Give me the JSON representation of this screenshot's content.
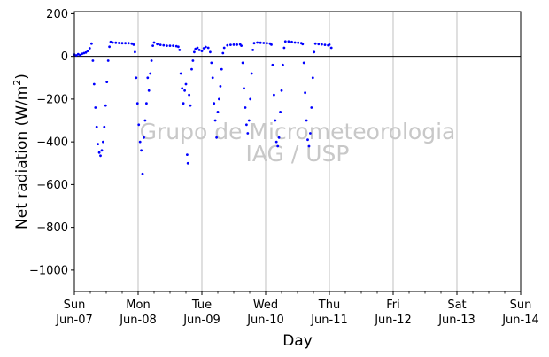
{
  "chart_data": {
    "type": "scatter",
    "xlabel": "Day",
    "ylabel": "Net radiation (W/m²)",
    "ylabel_main": "Net radiation (W/m",
    "ylabel_sup": "2",
    "ylabel_close": ")",
    "xlim": [
      0,
      7
    ],
    "ylim": [
      -1100,
      210
    ],
    "yticks": [
      200,
      0,
      -200,
      -400,
      -600,
      -800,
      -1000
    ],
    "ytick_labels": [
      "200",
      "0",
      "−200",
      "−400",
      "−600",
      "−800",
      "−1000"
    ],
    "xticks": [
      {
        "x": 0,
        "day": "Sun",
        "date": "Jun-07"
      },
      {
        "x": 1,
        "day": "Mon",
        "date": "Jun-08"
      },
      {
        "x": 2,
        "day": "Tue",
        "date": "Jun-09"
      },
      {
        "x": 3,
        "day": "Wed",
        "date": "Jun-10"
      },
      {
        "x": 4,
        "day": "Thu",
        "date": "Jun-11"
      },
      {
        "x": 5,
        "day": "Fri",
        "date": "Jun-12"
      },
      {
        "x": 6,
        "day": "Sat",
        "date": "Jun-13"
      },
      {
        "x": 7,
        "day": "Sun",
        "date": "Jun-14"
      }
    ],
    "grid": "vertical major lines",
    "zero_line": true,
    "point_color": "#0000ff",
    "watermark": [
      "Grupo de Micrometeorologia",
      "IAG / USP"
    ],
    "series": [
      {
        "points": [
          [
            0.0,
            8
          ],
          [
            0.03,
            5
          ],
          [
            0.06,
            10
          ],
          [
            0.09,
            6
          ],
          [
            0.12,
            12
          ],
          [
            0.15,
            15
          ],
          [
            0.18,
            18
          ],
          [
            0.21,
            25
          ],
          [
            0.24,
            38
          ],
          [
            0.27,
            60
          ],
          [
            0.29,
            -20
          ],
          [
            0.31,
            -130
          ],
          [
            0.33,
            -240
          ],
          [
            0.35,
            -330
          ],
          [
            0.37,
            -410
          ],
          [
            0.39,
            -450
          ],
          [
            0.41,
            -465
          ],
          [
            0.43,
            -440
          ],
          [
            0.45,
            -400
          ],
          [
            0.47,
            -330
          ],
          [
            0.49,
            -230
          ],
          [
            0.51,
            -120
          ],
          [
            0.53,
            -20
          ],
          [
            0.55,
            45
          ],
          [
            0.57,
            68
          ],
          [
            0.6,
            65
          ],
          [
            0.65,
            64
          ],
          [
            0.7,
            63
          ],
          [
            0.75,
            62
          ],
          [
            0.8,
            62
          ],
          [
            0.85,
            62
          ],
          [
            0.9,
            60
          ],
          [
            0.93,
            55
          ],
          [
            0.95,
            20
          ],
          [
            0.97,
            -100
          ],
          [
            0.99,
            -220
          ],
          [
            1.01,
            -320
          ],
          [
            1.03,
            -400
          ],
          [
            1.05,
            -440
          ],
          [
            1.07,
            -550
          ],
          [
            1.09,
            -380
          ],
          [
            1.11,
            -300
          ],
          [
            1.13,
            -220
          ],
          [
            1.15,
            -100
          ],
          [
            1.17,
            -160
          ],
          [
            1.19,
            -80
          ],
          [
            1.21,
            -20
          ],
          [
            1.23,
            50
          ],
          [
            1.25,
            65
          ],
          [
            1.3,
            58
          ],
          [
            1.35,
            54
          ],
          [
            1.4,
            52
          ],
          [
            1.45,
            50
          ],
          [
            1.5,
            50
          ],
          [
            1.55,
            50
          ],
          [
            1.6,
            48
          ],
          [
            1.63,
            45
          ],
          [
            1.65,
            30
          ],
          [
            1.67,
            -80
          ],
          [
            1.69,
            -150
          ],
          [
            1.71,
            -220
          ],
          [
            1.73,
            -160
          ],
          [
            1.75,
            -130
          ],
          [
            1.77,
            -460
          ],
          [
            1.78,
            -500
          ],
          [
            1.8,
            -180
          ],
          [
            1.82,
            -230
          ],
          [
            1.84,
            -60
          ],
          [
            1.86,
            -20
          ],
          [
            1.88,
            20
          ],
          [
            1.9,
            35
          ],
          [
            1.93,
            40
          ],
          [
            1.96,
            30
          ],
          [
            2.0,
            25
          ],
          [
            2.03,
            38
          ],
          [
            2.06,
            44
          ],
          [
            2.1,
            40
          ],
          [
            2.13,
            20
          ],
          [
            2.15,
            -30
          ],
          [
            2.17,
            -100
          ],
          [
            2.19,
            -220
          ],
          [
            2.21,
            -300
          ],
          [
            2.23,
            -380
          ],
          [
            2.25,
            -260
          ],
          [
            2.27,
            -200
          ],
          [
            2.29,
            -140
          ],
          [
            2.31,
            -60
          ],
          [
            2.33,
            15
          ],
          [
            2.35,
            40
          ],
          [
            2.4,
            52
          ],
          [
            2.45,
            54
          ],
          [
            2.5,
            55
          ],
          [
            2.55,
            55
          ],
          [
            2.6,
            56
          ],
          [
            2.62,
            50
          ],
          [
            2.64,
            -30
          ],
          [
            2.66,
            -150
          ],
          [
            2.68,
            -240
          ],
          [
            2.7,
            -320
          ],
          [
            2.72,
            -360
          ],
          [
            2.74,
            -300
          ],
          [
            2.76,
            -200
          ],
          [
            2.78,
            -80
          ],
          [
            2.8,
            30
          ],
          [
            2.82,
            62
          ],
          [
            2.87,
            65
          ],
          [
            2.92,
            64
          ],
          [
            2.97,
            63
          ],
          [
            3.02,
            62
          ],
          [
            3.07,
            60
          ],
          [
            3.09,
            55
          ],
          [
            3.11,
            -40
          ],
          [
            3.13,
            -180
          ],
          [
            3.15,
            -300
          ],
          [
            3.17,
            -400
          ],
          [
            3.19,
            -420
          ],
          [
            3.21,
            -380
          ],
          [
            3.23,
            -260
          ],
          [
            3.25,
            -160
          ],
          [
            3.27,
            -40
          ],
          [
            3.29,
            40
          ],
          [
            3.31,
            70
          ],
          [
            3.36,
            70
          ],
          [
            3.41,
            68
          ],
          [
            3.46,
            65
          ],
          [
            3.51,
            64
          ],
          [
            3.56,
            62
          ],
          [
            3.58,
            58
          ],
          [
            3.6,
            -30
          ],
          [
            3.62,
            -170
          ],
          [
            3.64,
            -300
          ],
          [
            3.66,
            -390
          ],
          [
            3.68,
            -420
          ],
          [
            3.7,
            -360
          ],
          [
            3.72,
            -240
          ],
          [
            3.74,
            -100
          ],
          [
            3.76,
            20
          ],
          [
            3.78,
            60
          ],
          [
            3.83,
            58
          ],
          [
            3.88,
            56
          ],
          [
            3.93,
            54
          ],
          [
            3.98,
            52
          ],
          [
            4.0,
            55
          ],
          [
            4.03,
            40
          ]
        ]
      }
    ]
  }
}
